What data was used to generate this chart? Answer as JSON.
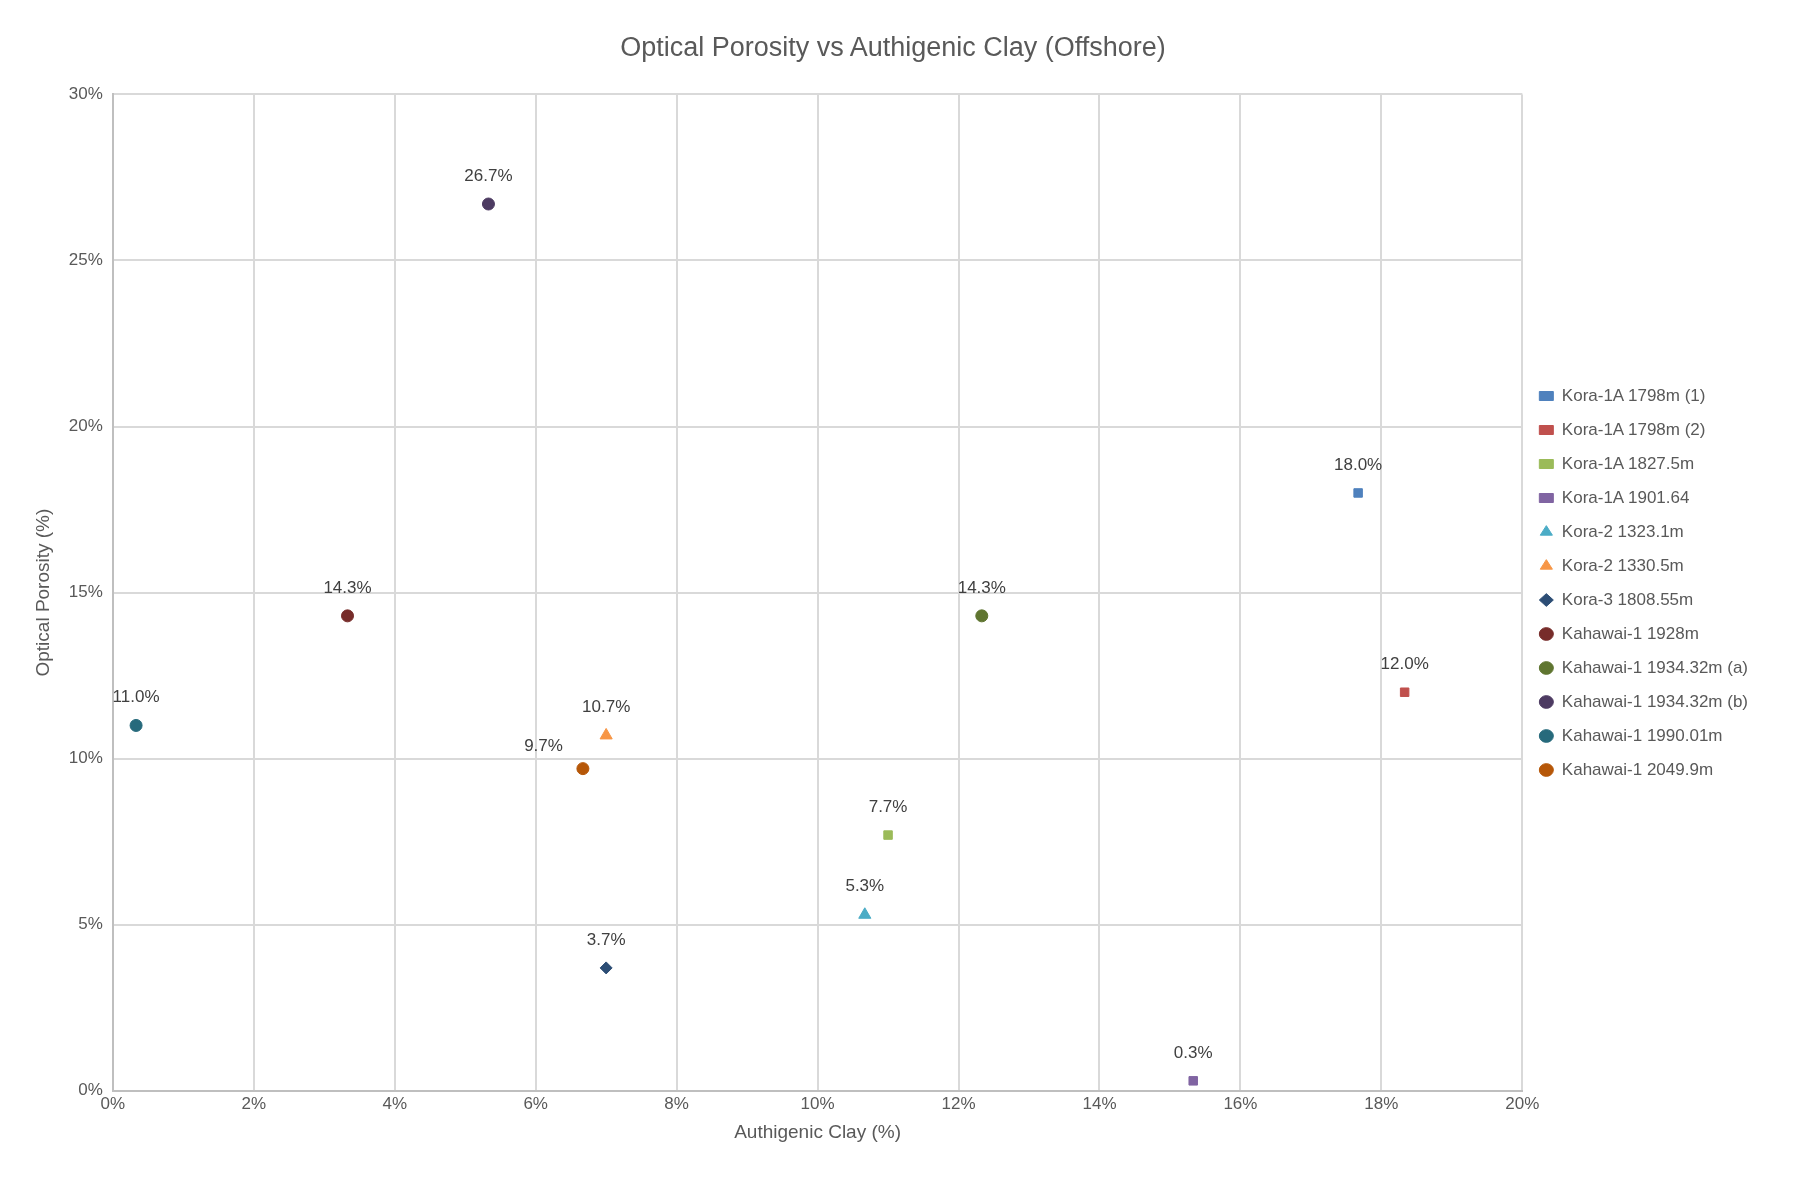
{
  "chart_data": {
    "type": "scatter",
    "title": "Optical Porosity vs Authigenic Clay (Offshore)",
    "xlabel": "Authigenic Clay (%)",
    "ylabel": "Optical Porosity (%)",
    "xlim": [
      0,
      20
    ],
    "xticks": [
      {
        "value": 0,
        "label": "0%"
      },
      {
        "value": 2,
        "label": "2%"
      },
      {
        "value": 4,
        "label": "4%"
      },
      {
        "value": 6,
        "label": "6%"
      },
      {
        "value": 8,
        "label": "8%"
      },
      {
        "value": 10,
        "label": "10%"
      },
      {
        "value": 12,
        "label": "12%"
      },
      {
        "value": 14,
        "label": "14%"
      },
      {
        "value": 16,
        "label": "16%"
      },
      {
        "value": 18,
        "label": "18%"
      },
      {
        "value": 20,
        "label": "20%"
      }
    ],
    "ylim": [
      0,
      30
    ],
    "yticks": [
      {
        "value": 0,
        "label": "0%"
      },
      {
        "value": 5,
        "label": "5%"
      },
      {
        "value": 10,
        "label": "10%"
      },
      {
        "value": 15,
        "label": "15%"
      },
      {
        "value": 20,
        "label": "20%"
      },
      {
        "value": 25,
        "label": "25%"
      },
      {
        "value": 30,
        "label": "30%"
      }
    ],
    "grid": true,
    "legend": "right",
    "series": [
      {
        "name": "Kora-1A 1798m (1)",
        "color": "#4f81bd",
        "marker": "square",
        "x": [
          17.67
        ],
        "values": [
          18.0
        ],
        "value_labels": [
          "18.0%"
        ]
      },
      {
        "name": "Kora-1A 1798m (2)",
        "color": "#c0504d",
        "marker": "square",
        "x": [
          18.33
        ],
        "values": [
          12.0
        ],
        "value_labels": [
          "12.0%"
        ]
      },
      {
        "name": "Kora-1A 1827.5m",
        "color": "#9bbb59",
        "marker": "square",
        "x": [
          11.0
        ],
        "values": [
          7.7
        ],
        "value_labels": [
          "7.7%"
        ]
      },
      {
        "name": "Kora-1A 1901.64",
        "color": "#8064a2",
        "marker": "square",
        "x": [
          15.33
        ],
        "values": [
          0.3
        ],
        "value_labels": [
          "0.3%"
        ]
      },
      {
        "name": "Kora-2 1323.1m",
        "color": "#4bacc6",
        "marker": "triangle",
        "x": [
          10.67
        ],
        "values": [
          5.3
        ],
        "value_labels": [
          "5.3%"
        ]
      },
      {
        "name": "Kora-2 1330.5m",
        "color": "#f79646",
        "marker": "triangle",
        "x": [
          7.0
        ],
        "values": [
          10.7
        ],
        "value_labels": [
          "10.7%"
        ]
      },
      {
        "name": "Kora-3 1808.55m",
        "color": "#2c4d75",
        "marker": "diamond",
        "x": [
          7.0
        ],
        "values": [
          3.7
        ],
        "value_labels": [
          "3.7%"
        ]
      },
      {
        "name": "Kahawai-1 1928m",
        "color": "#772c2a",
        "marker": "circle",
        "x": [
          3.33
        ],
        "values": [
          14.3
        ],
        "value_labels": [
          "14.3%"
        ]
      },
      {
        "name": "Kahawai-1 1934.32m (a)",
        "color": "#5f7530",
        "marker": "circle",
        "x": [
          12.33
        ],
        "values": [
          14.3
        ],
        "value_labels": [
          "14.3%"
        ]
      },
      {
        "name": "Kahawai-1 1934.32m (b)",
        "color": "#4d3b62",
        "marker": "circle",
        "x": [
          5.33
        ],
        "values": [
          26.7
        ],
        "value_labels": [
          "26.7%"
        ]
      },
      {
        "name": "Kahawai-1 1990.01m",
        "color": "#276a7c",
        "marker": "circle",
        "x": [
          0.33
        ],
        "values": [
          11.0
        ],
        "value_labels": [
          "11.0%"
        ]
      },
      {
        "name": "Kahawai-1 2049.9m",
        "color": "#b65708",
        "marker": "circle",
        "x": [
          6.67
        ],
        "values": [
          9.7
        ],
        "value_labels": [
          "9.7%"
        ]
      }
    ]
  }
}
